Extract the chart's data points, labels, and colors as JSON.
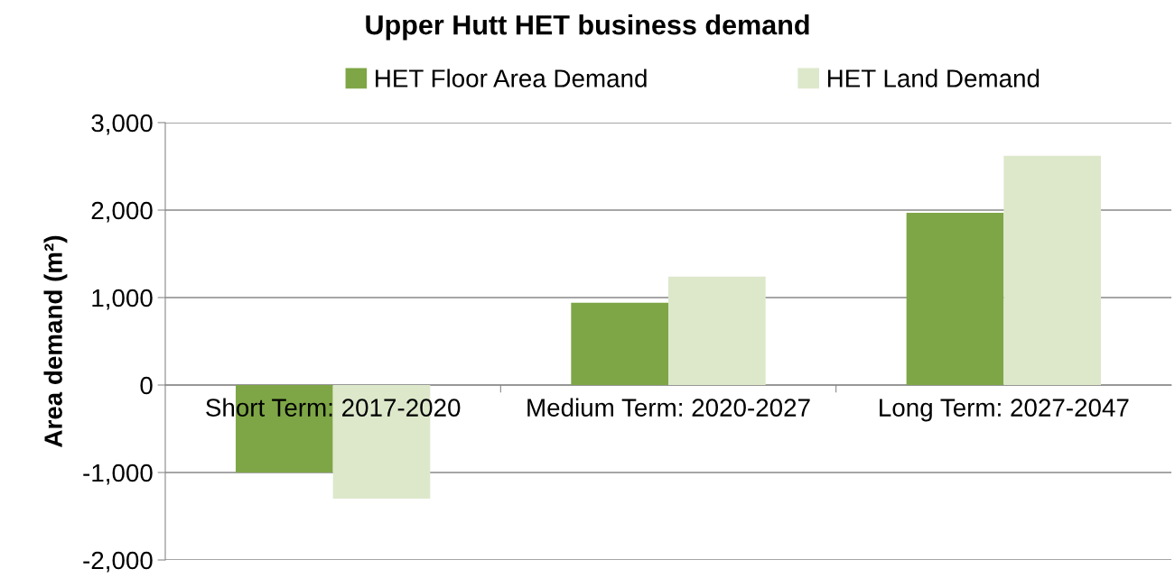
{
  "chart_data": {
    "type": "bar",
    "title": "Upper Hutt HET business demand",
    "ylabel": "Area demand (m²)",
    "categories": [
      "Short Term: 2017-2020",
      "Medium Term: 2020-2027",
      "Long Term: 2027-2047"
    ],
    "series": [
      {
        "name": "HET Floor Area Demand",
        "color": "#7ea646",
        "values": [
          -1000,
          940,
          1970
        ]
      },
      {
        "name": "HET Land Demand",
        "color": "#dde8cb",
        "values": [
          -1300,
          1240,
          2620
        ]
      }
    ],
    "ylim": [
      -2000,
      3000
    ],
    "yticks": [
      {
        "value": -2000,
        "label": "-2,000"
      },
      {
        "value": -1000,
        "label": "-1,000"
      },
      0,
      {
        "value": 1000,
        "label": "1,000"
      },
      {
        "value": 2000,
        "label": "2,000"
      },
      {
        "value": 3000,
        "label": "3,000"
      }
    ],
    "grid": "y",
    "legend": "top"
  }
}
